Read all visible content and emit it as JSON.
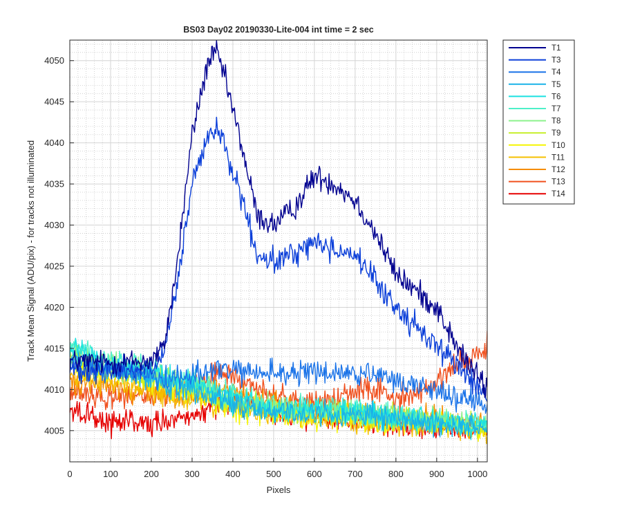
{
  "chart_data": {
    "type": "line",
    "title": "BS03 Day02 20190330-Lite-004 int time = 2 sec",
    "xlabel": "Pixels",
    "ylabel": "Track Mean Signal (ADU/pix) - for tracks not illuminated",
    "xlim": [
      0,
      1024
    ],
    "ylim": [
      4001.2,
      4052.5
    ],
    "xticks": [
      0,
      100,
      200,
      300,
      400,
      500,
      600,
      700,
      800,
      900,
      1000
    ],
    "yticks": [
      4005,
      4010,
      4015,
      4020,
      4025,
      4030,
      4035,
      4040,
      4045,
      4050
    ],
    "grid": "major+minor",
    "legend_position": "outside-top-right",
    "noise_amplitude": 1.5,
    "x": [
      0,
      100,
      200,
      230,
      260,
      300,
      340,
      360,
      380,
      420,
      460,
      500,
      550,
      600,
      650,
      700,
      750,
      800,
      850,
      900,
      950,
      1024
    ],
    "series": [
      {
        "name": "T1",
        "color": "#00008f",
        "values": [
          4013.5,
          4013.2,
          4013.5,
          4015.0,
          4024.0,
          4041.0,
          4050.0,
          4051.0,
          4048.0,
          4040.0,
          4031.0,
          4030.0,
          4032.0,
          4036.0,
          4035.0,
          4033.0,
          4029.0,
          4024.0,
          4022.0,
          4020.0,
          4015.0,
          4010.0
        ]
      },
      {
        "name": "T3",
        "color": "#0b3fd9",
        "values": [
          4012.5,
          4012.5,
          4012.5,
          4014.0,
          4021.5,
          4035.0,
          4040.5,
          4042.0,
          4039.5,
          4033.5,
          4026.0,
          4025.5,
          4026.5,
          4028.0,
          4027.0,
          4026.5,
          4023.0,
          4020.0,
          4017.5,
          4015.5,
          4013.0,
          4009.0
        ]
      },
      {
        "name": "T4",
        "color": "#1a73e8",
        "values": [
          4012.5,
          4012.0,
          4012.0,
          4011.0,
          4011.5,
          4012.0,
          4012.0,
          4012.5,
          4012.5,
          4012.0,
          4012.0,
          4012.0,
          4012.0,
          4012.0,
          4012.0,
          4012.0,
          4011.5,
          4011.0,
          4010.5,
          4010.0,
          4009.0,
          4008.0
        ]
      },
      {
        "name": "T5",
        "color": "#1ab2e8",
        "values": [
          4014.0,
          4012.5,
          4011.5,
          4011.0,
          4010.5,
          4010.0,
          4009.5,
          4009.0,
          4008.5,
          4008.0,
          4007.5,
          4007.5,
          4007.0,
          4007.0,
          4007.0,
          4007.0,
          4006.5,
          4006.5,
          4006.0,
          4006.0,
          4005.5,
          4005.5
        ]
      },
      {
        "name": "T6",
        "color": "#1ae1e1",
        "values": [
          4015.0,
          4013.0,
          4012.0,
          4011.5,
          4011.0,
          4010.5,
          4010.0,
          4009.5,
          4009.0,
          4008.5,
          4008.0,
          4007.5,
          4007.5,
          4007.5,
          4007.0,
          4007.0,
          4007.0,
          4006.5,
          4006.5,
          4006.0,
          4006.0,
          4005.5
        ]
      },
      {
        "name": "T7",
        "color": "#4df0c8",
        "values": [
          4015.5,
          4013.5,
          4012.5,
          4012.0,
          4011.5,
          4011.0,
          4010.5,
          4010.0,
          4009.5,
          4009.0,
          4008.5,
          4008.0,
          4008.0,
          4007.5,
          4007.5,
          4007.5,
          4007.0,
          4007.0,
          4006.5,
          4006.5,
          4006.0,
          4006.0
        ]
      },
      {
        "name": "T8",
        "color": "#8cf28c",
        "values": [
          4014.5,
          4013.0,
          4012.0,
          4011.5,
          4011.0,
          4010.5,
          4010.0,
          4009.5,
          4009.0,
          4008.5,
          4008.0,
          4008.0,
          4007.5,
          4007.5,
          4007.5,
          4007.0,
          4007.0,
          4007.0,
          4006.5,
          4006.5,
          4006.0,
          4006.0
        ]
      },
      {
        "name": "T9",
        "color": "#c6ef28",
        "values": [
          4014.0,
          4012.5,
          4011.5,
          4011.0,
          4010.5,
          4010.0,
          4009.5,
          4009.0,
          4008.5,
          4008.0,
          4008.0,
          4007.5,
          4007.5,
          4007.0,
          4007.0,
          4007.0,
          4006.5,
          4006.5,
          4006.5,
          4006.0,
          4006.0,
          4005.5
        ]
      },
      {
        "name": "T10",
        "color": "#f5f500",
        "values": [
          4013.0,
          4012.0,
          4011.0,
          4010.5,
          4010.0,
          4009.5,
          4009.0,
          4008.5,
          4008.0,
          4007.5,
          4007.5,
          4007.0,
          4007.0,
          4006.5,
          4006.5,
          4006.5,
          4006.0,
          4006.0,
          4006.0,
          4005.5,
          4005.5,
          4005.0
        ]
      },
      {
        "name": "T11",
        "color": "#f5c000",
        "values": [
          4011.5,
          4011.0,
          4010.0,
          4009.5,
          4009.0,
          4009.0,
          4008.5,
          4008.0,
          4008.0,
          4007.5,
          4007.0,
          4007.0,
          4006.5,
          4006.5,
          4006.5,
          4006.0,
          4006.0,
          4006.0,
          4005.5,
          4005.5,
          4005.5,
          4005.0
        ]
      },
      {
        "name": "T12",
        "color": "#f58c00",
        "values": [
          4011.0,
          4010.5,
          4009.5,
          4009.5,
          4009.0,
          4009.0,
          4009.5,
          4010.0,
          4010.0,
          4009.5,
          4009.0,
          4008.5,
          4008.0,
          4007.5,
          4007.5,
          4007.0,
          4007.0,
          4006.5,
          4006.5,
          4006.5,
          4006.0,
          4006.0
        ]
      },
      {
        "name": "T13",
        "color": "#f0501e",
        "values": [
          4010.0,
          4009.0,
          4009.0,
          4009.5,
          4010.0,
          4010.5,
          4011.5,
          4012.0,
          4012.0,
          4011.0,
          4010.0,
          4009.5,
          4009.0,
          4008.5,
          4009.0,
          4009.5,
          4010.0,
          4009.0,
          4009.5,
          4011.0,
          4013.0,
          4015.0
        ]
      },
      {
        "name": "T14",
        "color": "#e60000",
        "values": [
          4007.5,
          4006.0,
          4005.5,
          4006.0,
          4006.5,
          4007.0,
          4007.5,
          4008.0,
          4008.5,
          4008.0,
          4007.5,
          4007.0,
          4007.0,
          4006.5,
          4006.5,
          4006.0,
          4006.0,
          4005.5,
          4005.5,
          4005.0,
          4005.0,
          4005.0
        ]
      }
    ]
  }
}
